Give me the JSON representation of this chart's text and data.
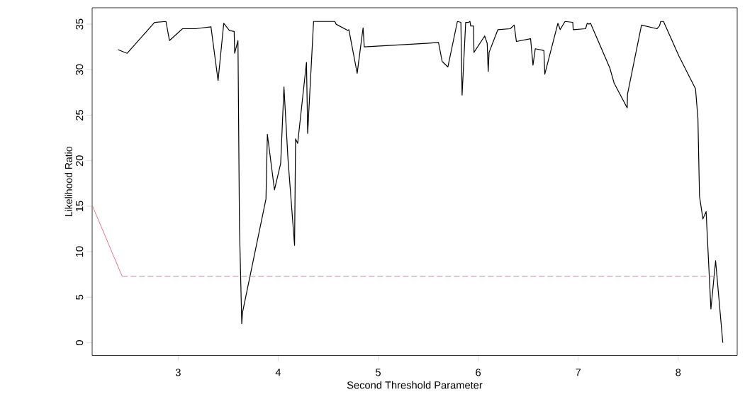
{
  "chart_data": {
    "type": "line",
    "xlabel": "Second Threshold Parameter",
    "ylabel": "Likelihood Ratio",
    "xlim": [
      2.14,
      8.59
    ],
    "ylim": [
      -1.4,
      36.8
    ],
    "xticks": [
      3,
      4,
      5,
      6,
      7,
      8
    ],
    "yticks": [
      0,
      5,
      10,
      15,
      20,
      25,
      30,
      35
    ],
    "series": [
      {
        "color": "#000000",
        "x": [
          2.397,
          2.49,
          2.764,
          2.878,
          2.913,
          3.044,
          3.174,
          3.328,
          3.399,
          3.456,
          3.513,
          3.56,
          3.565,
          3.598,
          3.613,
          3.636,
          3.643,
          3.878,
          3.892,
          3.963,
          4.025,
          4.058,
          4.098,
          4.164,
          4.174,
          4.195,
          4.283,
          4.295,
          4.354,
          4.567,
          4.579,
          4.697,
          4.707,
          4.79,
          4.849,
          4.861,
          5.484,
          5.603,
          5.64,
          5.697,
          5.792,
          5.827,
          5.839,
          5.875,
          5.903,
          5.918,
          5.925,
          5.953,
          5.958,
          6.065,
          6.09,
          6.1,
          6.109,
          6.197,
          6.32,
          6.36,
          6.382,
          6.524,
          6.548,
          6.571,
          6.657,
          6.666,
          6.797,
          6.82,
          6.868,
          6.946,
          6.95,
          7.074,
          7.09,
          7.109,
          7.123,
          7.316,
          7.36,
          7.49,
          7.493,
          7.633,
          7.787,
          7.813,
          7.825,
          7.853,
          8.007,
          8.173,
          8.197,
          8.213,
          8.247,
          8.279,
          8.327,
          8.374,
          8.446
        ],
        "values": [
          32.2,
          31.8,
          35.2,
          35.3,
          33.2,
          34.5,
          34.5,
          34.7,
          28.8,
          35.1,
          34.3,
          34.2,
          31.8,
          33.2,
          12.7,
          2.1,
          3.3,
          15.8,
          22.9,
          16.8,
          19.7,
          28.1,
          20.2,
          10.7,
          22.4,
          21.9,
          30.8,
          23.0,
          35.3,
          35.3,
          35.0,
          34.3,
          34.4,
          29.6,
          34.6,
          32.5,
          32.9,
          33.0,
          30.9,
          30.3,
          35.3,
          35.2,
          27.2,
          35.2,
          35.2,
          35.3,
          34.8,
          34.8,
          31.9,
          33.7,
          32.9,
          29.8,
          31.9,
          34.4,
          34.5,
          34.9,
          33.1,
          33.4,
          30.5,
          32.3,
          32.1,
          29.5,
          35.1,
          34.4,
          35.3,
          35.2,
          34.4,
          34.5,
          35.1,
          35.0,
          35.1,
          30.2,
          28.5,
          25.8,
          27.3,
          34.9,
          34.5,
          34.8,
          35.3,
          35.3,
          31.5,
          27.9,
          24.7,
          16.1,
          13.6,
          14.4,
          3.7,
          9.0,
          0.0
        ]
      },
      {
        "color": "#df536b",
        "x": [
          2.144,
          2.44
        ],
        "values": [
          15.0,
          7.3
        ]
      },
      {
        "color": "#df536b",
        "line_style": "dashed",
        "x": [
          2.44,
          8.4
        ],
        "values": [
          7.3,
          7.3
        ]
      }
    ]
  }
}
